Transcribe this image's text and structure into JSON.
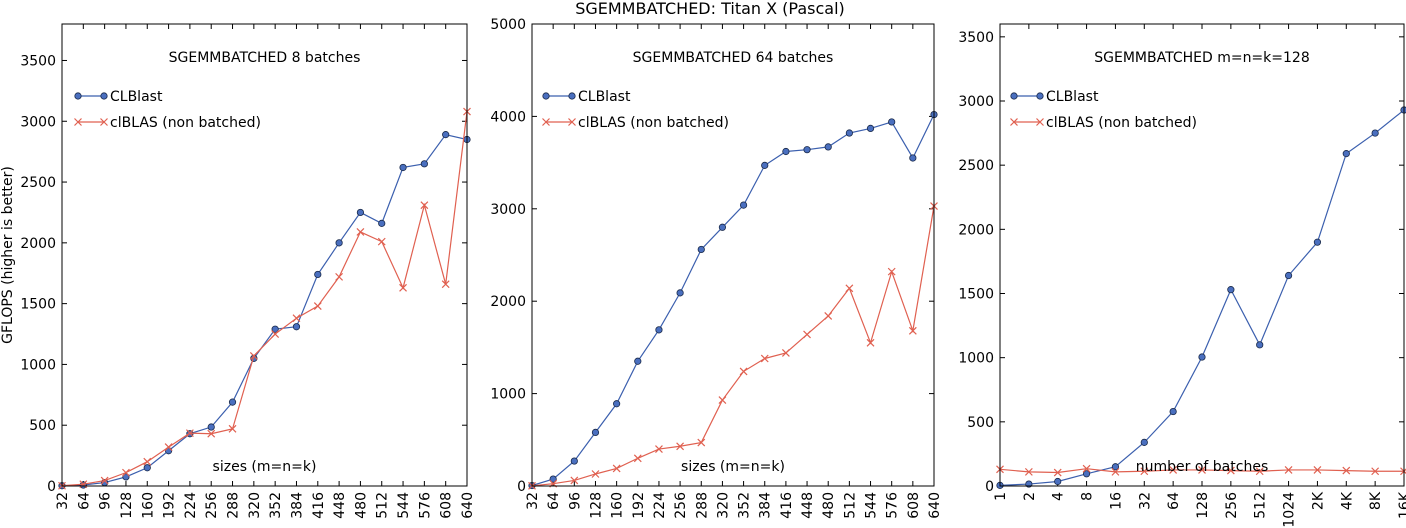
{
  "figure_title": "SGEMMBATCHED: Titan X (Pascal)",
  "colors": {
    "clblast": "#3b5fae",
    "clblast_marker": "#4a6fbf",
    "clblas": "#e06050"
  },
  "chart_data": [
    {
      "type": "line",
      "title": "SGEMMBATCHED 8 batches",
      "xlabel": "sizes (m=n=k)",
      "ylabel": "GFLOPS (higher is better)",
      "x": [
        "32",
        "64",
        "96",
        "128",
        "160",
        "192",
        "224",
        "256",
        "288",
        "320",
        "352",
        "384",
        "416",
        "448",
        "480",
        "512",
        "544",
        "576",
        "608",
        "640"
      ],
      "ylim": [
        0,
        3800
      ],
      "yticks": [
        0,
        500,
        1000,
        1500,
        2000,
        2500,
        3000,
        3500
      ],
      "legend": "top-left",
      "series": [
        {
          "name": "CLBlast",
          "marker": "circle",
          "values": [
            2,
            8,
            28,
            75,
            150,
            290,
            430,
            485,
            690,
            1050,
            1290,
            1310,
            1740,
            2000,
            2250,
            2160,
            2620,
            2650,
            2890,
            2850
          ]
        },
        {
          "name": "clBLAS (non batched)",
          "marker": "x",
          "values": [
            2,
            15,
            45,
            110,
            200,
            320,
            435,
            430,
            470,
            1070,
            1250,
            1380,
            1480,
            1720,
            2090,
            2010,
            1630,
            2310,
            1660,
            3080
          ]
        }
      ]
    },
    {
      "type": "line",
      "title": "SGEMMBATCHED 64 batches",
      "xlabel": "sizes (m=n=k)",
      "ylabel": "",
      "x": [
        "32",
        "64",
        "96",
        "128",
        "160",
        "192",
        "224",
        "256",
        "288",
        "320",
        "352",
        "384",
        "416",
        "448",
        "480",
        "512",
        "544",
        "576",
        "608",
        "640"
      ],
      "ylim": [
        0,
        5000
      ],
      "yticks": [
        0,
        1000,
        2000,
        3000,
        4000,
        5000
      ],
      "legend": "top-left",
      "series": [
        {
          "name": "CLBlast",
          "marker": "circle",
          "values": [
            5,
            75,
            270,
            580,
            890,
            1350,
            1690,
            2090,
            2560,
            2800,
            3040,
            3470,
            3620,
            3640,
            3670,
            3820,
            3870,
            3940,
            3550,
            4020
          ]
        },
        {
          "name": "clBLAS (non batched)",
          "marker": "x",
          "values": [
            2,
            25,
            60,
            130,
            190,
            300,
            400,
            430,
            470,
            930,
            1240,
            1380,
            1440,
            1640,
            1840,
            2140,
            1550,
            2320,
            1680,
            3030
          ]
        }
      ]
    },
    {
      "type": "line",
      "title": "SGEMMBATCHED m=n=k=128",
      "xlabel": "number of batches",
      "ylabel": "",
      "x": [
        "1",
        "2",
        "4",
        "8",
        "16",
        "32",
        "64",
        "128",
        "256",
        "512",
        "1024",
        "2K",
        "4K",
        "8K",
        "16K"
      ],
      "ylim": [
        0,
        3600
      ],
      "yticks": [
        0,
        500,
        1000,
        1500,
        2000,
        2500,
        3000,
        3500
      ],
      "legend": "top-left",
      "series": [
        {
          "name": "CLBlast",
          "marker": "circle",
          "values": [
            5,
            15,
            35,
            95,
            150,
            340,
            580,
            1005,
            1530,
            1100,
            1640,
            1900,
            2590,
            2750,
            2930
          ]
        },
        {
          "name": "clBLAS (non batched)",
          "marker": "x",
          "values": [
            130,
            110,
            105,
            135,
            110,
            115,
            125,
            125,
            120,
            115,
            125,
            125,
            120,
            115,
            115
          ]
        }
      ]
    }
  ]
}
